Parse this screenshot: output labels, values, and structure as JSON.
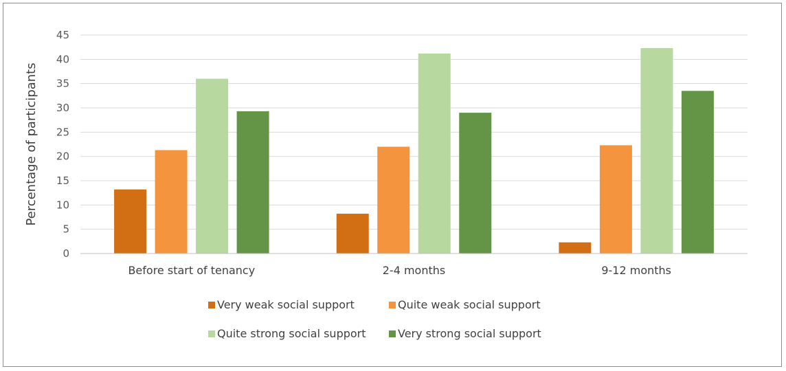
{
  "chart_data": {
    "type": "bar",
    "title": "",
    "xlabel": "",
    "ylabel": "Percentage of participants",
    "ylim": [
      0,
      45
    ],
    "yticks": [
      0,
      5,
      10,
      15,
      20,
      25,
      30,
      35,
      40,
      45
    ],
    "grid": true,
    "legend_position": "bottom",
    "categories": [
      "Before start of tenancy",
      "2-4 months",
      "9-12 months"
    ],
    "series": [
      {
        "name": "Very weak social support",
        "color": "#d26f15",
        "values": [
          13.2,
          8.2,
          2.3
        ]
      },
      {
        "name": "Quite weak social support",
        "color": "#f4943f",
        "values": [
          21.3,
          22.0,
          22.3
        ]
      },
      {
        "name": "Quite strong social support",
        "color": "#b7d89e",
        "values": [
          36.0,
          41.2,
          42.3
        ]
      },
      {
        "name": "Very strong social support",
        "color": "#649546",
        "values": [
          29.3,
          29.0,
          33.5
        ]
      }
    ]
  }
}
